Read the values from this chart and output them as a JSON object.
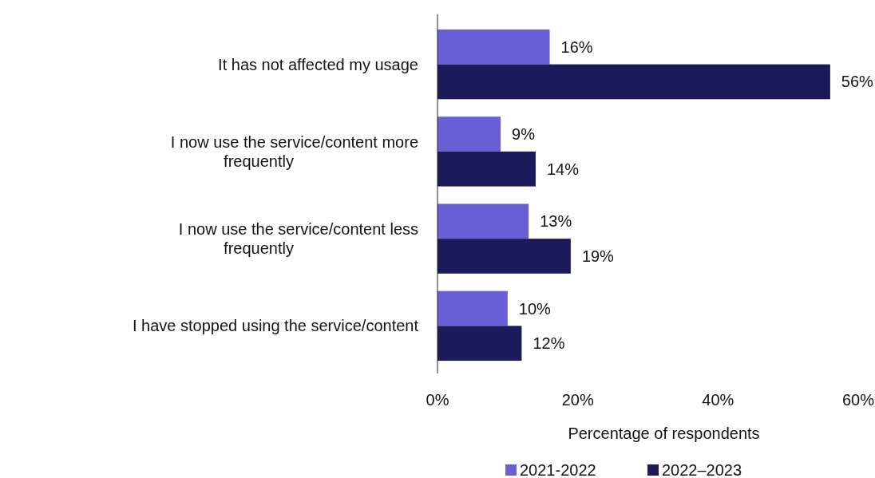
{
  "chart_data": {
    "type": "bar",
    "orientation": "horizontal",
    "xlabel": "Percentage of respondents",
    "categories": [
      "It has not affected my usage",
      "I now use the service/content more frequently",
      "I now use the service/content less frequently",
      "I have stopped using the service/content"
    ],
    "series": [
      {
        "name": "2021-2022",
        "color": "#6a5fd6",
        "values": [
          16,
          9,
          13,
          10
        ],
        "value_labels": [
          "16%",
          "9%",
          "13%",
          "10%"
        ]
      },
      {
        "name": "2022–2023",
        "color": "#1c1a5a",
        "values": [
          56,
          14,
          19,
          12
        ],
        "value_labels": [
          "56%",
          "14%",
          "19%",
          "12%"
        ]
      }
    ],
    "xlim": [
      0,
      60
    ],
    "xticks": [
      {
        "value": 0,
        "label": "0%"
      },
      {
        "value": 20,
        "label": "20%"
      },
      {
        "value": 40,
        "label": "40%"
      },
      {
        "value": 60,
        "label": "60%"
      }
    ],
    "grid": false,
    "legend": "bottom"
  }
}
